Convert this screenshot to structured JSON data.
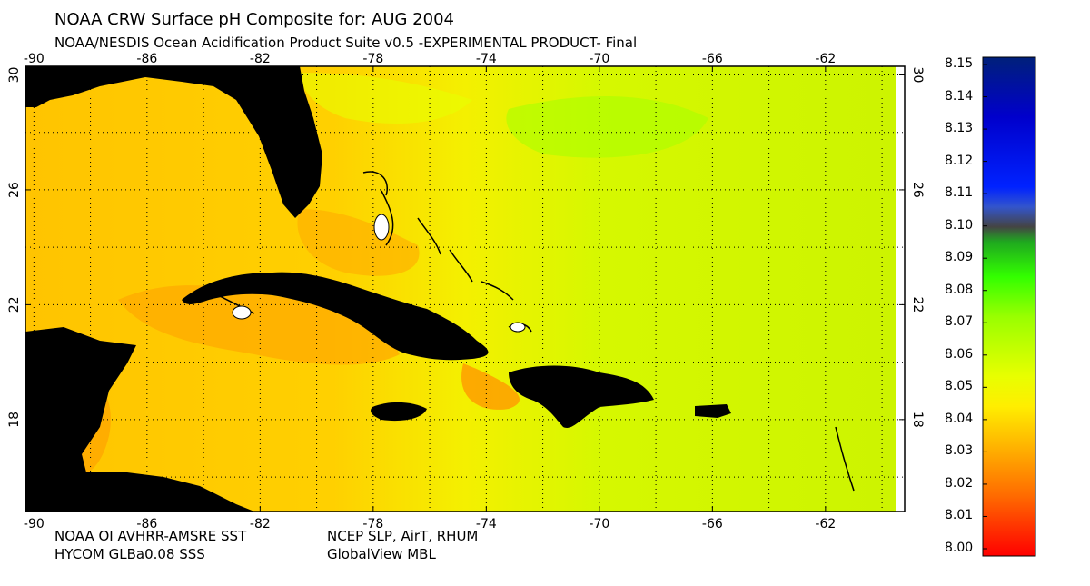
{
  "header": {
    "title": "NOAA CRW Surface pH Composite for: AUG 2004",
    "subtitle": "NOAA/NESDIS Ocean Acidification Product Suite  v0.5 -EXPERIMENTAL PRODUCT-    Final"
  },
  "footer": {
    "left_line1": "NOAA OI AVHRR-AMSRE SST",
    "left_line2": "HYCOM GLBa0.08 SSS",
    "right_line1": "NCEP SLP, AirT, RHUM",
    "right_line2": "GlobalView MBL"
  },
  "map": {
    "lon_ticks": [
      "-90",
      "-86",
      "-82",
      "-78",
      "-74",
      "-70",
      "-66",
      "-62"
    ],
    "lat_ticks": [
      "30",
      "26",
      "22",
      "18"
    ],
    "land_color": "#000000",
    "grid": true
  },
  "colorbar": {
    "labels": [
      "8.15",
      "8.14",
      "8.13",
      "8.12",
      "8.11",
      "8.10",
      "8.09",
      "8.08",
      "8.07",
      "8.06",
      "8.05",
      "8.04",
      "8.03",
      "8.02",
      "8.01",
      "8.00"
    ],
    "min": 8.0,
    "max": 8.15,
    "colors": {
      "low": "#ff1a00",
      "orange": "#ff8c00",
      "yellow": "#ffff00",
      "green": "#33ff00",
      "dark": "#333333",
      "blue": "#0033ff",
      "navy": "#002060"
    }
  }
}
